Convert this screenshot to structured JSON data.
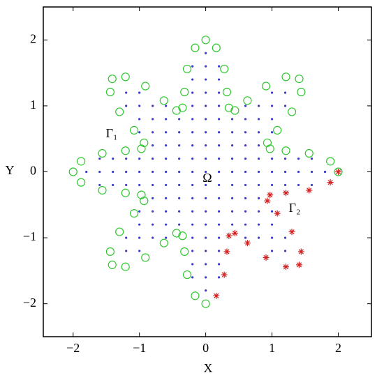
{
  "chart_data": {
    "type": "scatter",
    "xlabel": "X",
    "ylabel": "Y",
    "xlim": [
      -2.45,
      2.5
    ],
    "ylim": [
      -2.5,
      2.5
    ],
    "xticks": [
      {
        "value": -2,
        "label": "−2"
      },
      {
        "value": -1,
        "label": "−1"
      },
      0,
      1,
      2
    ],
    "yticks": [
      {
        "value": -2,
        "label": "−2"
      },
      {
        "value": -1,
        "label": "−1"
      },
      0,
      1,
      2
    ],
    "annotations": {
      "omega": "Ω",
      "gamma1": "Γ₁",
      "gamma2": "Γ₂"
    },
    "interior": {
      "color": "#3b3bc8",
      "rows": [
        {
          "y": 1.8,
          "x": [
            0
          ]
        },
        {
          "y": 1.6,
          "x": [
            -0.2,
            0,
            0.2
          ]
        },
        {
          "y": 1.4,
          "x": [
            -0.2,
            0,
            0.2
          ]
        },
        {
          "y": 1.2,
          "x": [
            -1.2,
            -1,
            -0.2,
            0,
            0.2,
            1,
            1.2
          ]
        },
        {
          "y": 1.0,
          "x": [
            -1.2,
            -1,
            -0.8,
            -0.6,
            -0.2,
            0,
            0.2,
            0.6,
            0.8,
            1,
            1.2
          ]
        },
        {
          "y": 0.8,
          "x": [
            -1,
            -0.8,
            -0.6,
            -0.4,
            -0.2,
            0,
            0.2,
            0.4,
            0.6,
            0.8,
            1
          ]
        },
        {
          "y": 0.6,
          "x": [
            -1,
            -0.8,
            -0.6,
            -0.4,
            -0.2,
            0,
            0.2,
            0.4,
            0.6,
            0.8,
            1
          ]
        },
        {
          "y": 0.4,
          "x": [
            -0.8,
            -0.6,
            -0.4,
            -0.2,
            0,
            0.2,
            0.4,
            0.6,
            0.8
          ]
        },
        {
          "y": 0.2,
          "x": [
            -1.6,
            -1.4,
            -1.2,
            -1,
            -0.8,
            -0.6,
            -0.4,
            -0.2,
            0,
            0.2,
            0.4,
            0.6,
            0.8,
            1,
            1.2,
            1.4,
            1.6
          ]
        },
        {
          "y": 0,
          "x": [
            -1.8,
            -1.6,
            -1.4,
            -1.2,
            -1,
            -0.8,
            -0.6,
            -0.4,
            -0.2,
            0,
            0.2,
            0.4,
            0.6,
            0.8,
            1,
            1.2,
            1.4,
            1.6,
            1.8
          ]
        },
        {
          "y": -0.2,
          "x": [
            -1.6,
            -1.4,
            -1.2,
            -1,
            -0.8,
            -0.6,
            -0.4,
            -0.2,
            0,
            0.2,
            0.4,
            0.6,
            0.8,
            1,
            1.2,
            1.4,
            1.6
          ]
        },
        {
          "y": -0.4,
          "x": [
            -0.8,
            -0.6,
            -0.4,
            -0.2,
            0,
            0.2,
            0.4,
            0.6,
            0.8
          ]
        },
        {
          "y": -0.6,
          "x": [
            -1,
            -0.8,
            -0.6,
            -0.4,
            -0.2,
            0,
            0.2,
            0.4,
            0.6,
            0.8,
            1
          ]
        },
        {
          "y": -0.8,
          "x": [
            -1,
            -0.8,
            -0.6,
            -0.4,
            -0.2,
            0,
            0.2,
            0.4,
            0.6,
            0.8,
            1
          ]
        },
        {
          "y": -1.0,
          "x": [
            -1.2,
            -1,
            -0.8,
            -0.6,
            -0.2,
            0,
            0.2,
            0.6,
            0.8,
            1,
            1.2
          ]
        },
        {
          "y": -1.2,
          "x": [
            -1.2,
            -1,
            -0.2,
            0,
            0.2,
            1,
            1.2
          ]
        },
        {
          "y": -1.4,
          "x": [
            -0.2,
            0,
            0.2
          ]
        },
        {
          "y": -1.6,
          "x": [
            -0.2,
            0,
            0.2
          ]
        },
        {
          "y": -1.8,
          "x": [
            0
          ]
        }
      ]
    },
    "gamma1": {
      "color": "#2ec82e",
      "x": [
        2.0,
        1.88,
        1.56,
        1.21,
        0.97,
        0.93,
        1.08,
        1.3,
        1.44,
        1.41,
        1.21,
        0.91,
        0.63,
        0.44,
        0.35,
        0.32,
        0.28,
        0.16,
        0.0,
        -0.16,
        -0.28,
        -0.32,
        -0.35,
        -0.44,
        -0.63,
        -0.91,
        -1.21,
        -1.41,
        -1.44,
        -1.3,
        -1.08,
        -0.93,
        -0.97,
        -1.21,
        -1.56,
        -1.88,
        -2.0,
        -1.88,
        -1.56,
        -1.21,
        -0.97,
        -0.93,
        -1.08,
        -1.3,
        -1.44,
        -1.41,
        -1.21,
        -0.91,
        -0.63,
        -0.44,
        -0.35,
        -0.32,
        -0.28,
        -0.16,
        0.0
      ],
      "y": [
        0.0,
        0.16,
        0.28,
        0.32,
        0.35,
        0.44,
        0.63,
        0.91,
        1.21,
        1.41,
        1.44,
        1.3,
        1.08,
        0.93,
        0.97,
        1.21,
        1.56,
        1.88,
        2.0,
        1.88,
        1.56,
        1.21,
        0.97,
        0.93,
        1.08,
        1.3,
        1.44,
        1.41,
        1.21,
        0.91,
        0.63,
        0.44,
        0.35,
        0.32,
        0.28,
        0.16,
        0.0,
        -0.16,
        -0.28,
        -0.32,
        -0.35,
        -0.44,
        -0.63,
        -0.91,
        -1.21,
        -1.41,
        -1.44,
        -1.3,
        -1.08,
        -0.93,
        -0.97,
        -1.21,
        -1.56,
        -1.88,
        -2.0
      ]
    },
    "gamma2": {
      "color": "#d42020",
      "x": [
        0.16,
        0.28,
        0.32,
        0.35,
        0.44,
        0.63,
        0.91,
        1.21,
        1.41,
        1.44,
        1.3,
        1.08,
        0.93,
        0.97,
        1.21,
        1.56,
        1.88,
        2.0
      ],
      "y": [
        -1.88,
        -1.56,
        -1.21,
        -0.97,
        -0.93,
        -1.08,
        -1.3,
        -1.44,
        -1.41,
        -1.21,
        -0.91,
        -0.63,
        -0.44,
        -0.35,
        -0.32,
        -0.28,
        -0.16,
        0.0
      ]
    }
  }
}
